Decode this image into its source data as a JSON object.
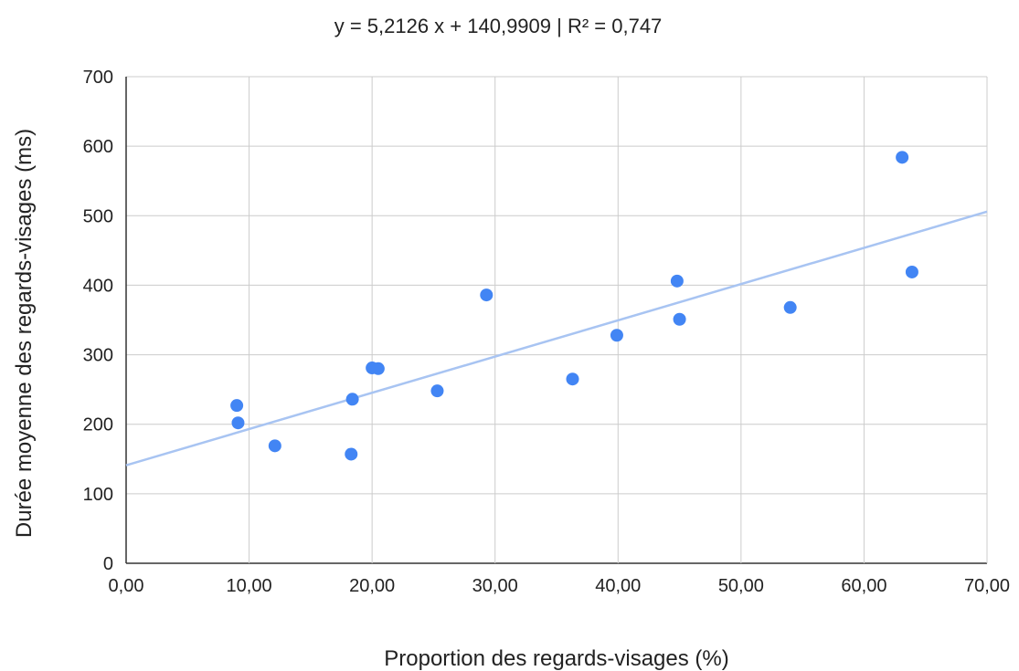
{
  "chart_data": {
    "type": "scatter",
    "title": "y = 5,2126 x + 140,9909 | R² = 0,747",
    "xlabel": "Proportion des regards-visages (%)",
    "ylabel": "Durée moyenne des regards-visages (ms)",
    "xlim": [
      0,
      70
    ],
    "ylim": [
      0,
      700
    ],
    "x_ticks": [
      0,
      10,
      20,
      30,
      40,
      50,
      60,
      70
    ],
    "y_ticks": [
      0,
      100,
      200,
      300,
      400,
      500,
      600,
      700
    ],
    "x_tick_labels": [
      "0,00",
      "10,00",
      "20,00",
      "30,00",
      "40,00",
      "50,00",
      "60,00",
      "70,00"
    ],
    "y_tick_labels": [
      "0",
      "100",
      "200",
      "300",
      "400",
      "500",
      "600",
      "700"
    ],
    "grid": true,
    "legend": "none",
    "point_color": "#4285f4",
    "trendline_color": "#a8c4f2",
    "series": [
      {
        "points": [
          {
            "x": 9.0,
            "y": 227
          },
          {
            "x": 9.1,
            "y": 202
          },
          {
            "x": 12.1,
            "y": 169
          },
          {
            "x": 18.3,
            "y": 157
          },
          {
            "x": 18.4,
            "y": 236
          },
          {
            "x": 20.0,
            "y": 281
          },
          {
            "x": 20.5,
            "y": 280
          },
          {
            "x": 25.3,
            "y": 248
          },
          {
            "x": 29.3,
            "y": 386
          },
          {
            "x": 36.3,
            "y": 265
          },
          {
            "x": 39.9,
            "y": 328
          },
          {
            "x": 44.8,
            "y": 406
          },
          {
            "x": 45.0,
            "y": 351
          },
          {
            "x": 54.0,
            "y": 368
          },
          {
            "x": 63.1,
            "y": 584
          },
          {
            "x": 63.9,
            "y": 419
          }
        ]
      }
    ],
    "trendline": {
      "slope": 5.2126,
      "intercept": 140.9909
    }
  }
}
